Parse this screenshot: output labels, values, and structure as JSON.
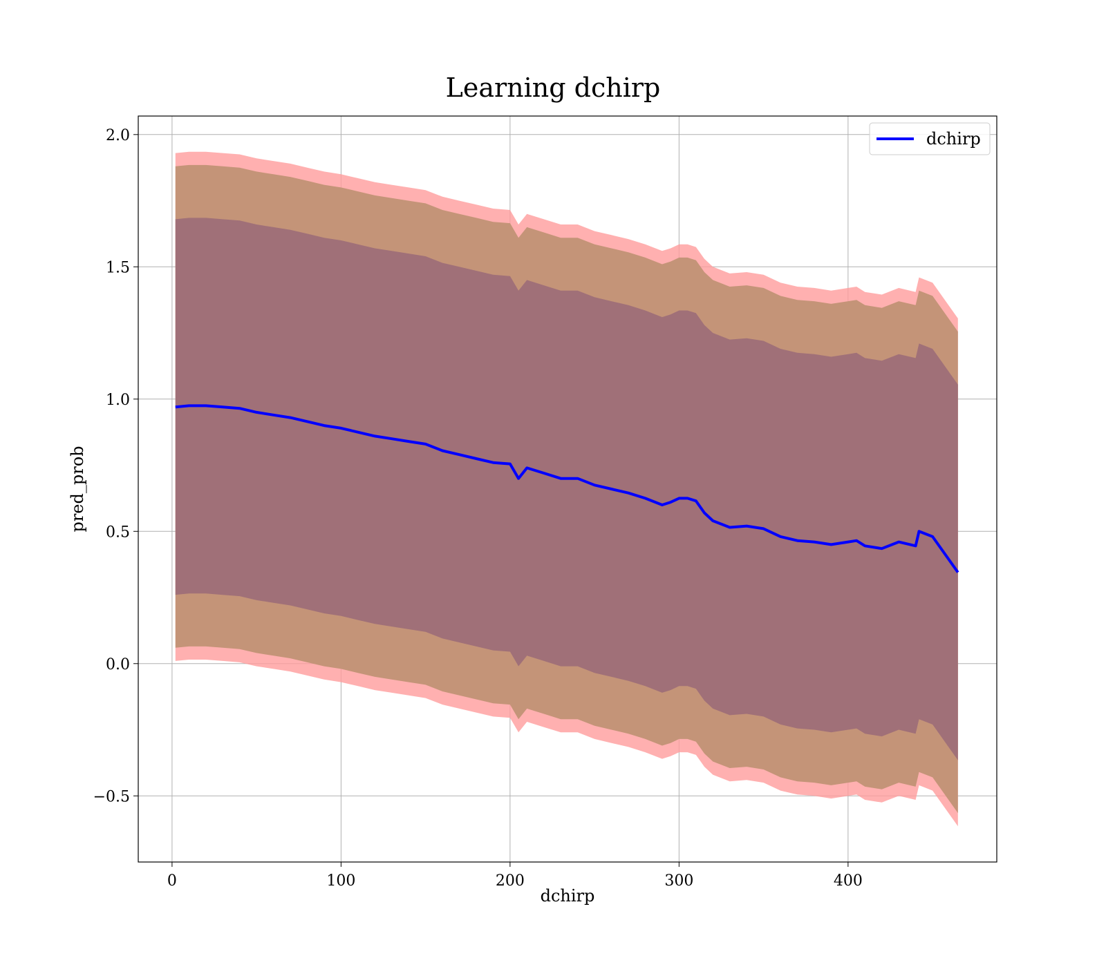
{
  "chart_data": {
    "type": "line",
    "title": "Learning dchirp",
    "xlabel": "dchirp",
    "ylabel": "pred_prob",
    "xlim": [
      -20,
      488
    ],
    "ylim": [
      -0.75,
      2.07
    ],
    "xticks": [
      0,
      100,
      200,
      300,
      400
    ],
    "xtick_labels": [
      "0",
      "100",
      "200",
      "300",
      "400"
    ],
    "yticks": [
      -0.5,
      0.0,
      0.5,
      1.0,
      1.5,
      2.0
    ],
    "ytick_labels": [
      "−0.5",
      "0.0",
      "0.5",
      "1.0",
      "1.5",
      "2.0"
    ],
    "grid": true,
    "legend": {
      "position": "upper-right",
      "entries": [
        "dchirp"
      ]
    },
    "colors": {
      "line": "#0000ff",
      "band_outer": "#ff9c9c",
      "band_middle": "#c49478",
      "band_inner": "#a07078"
    },
    "series": [
      {
        "name": "dchirp",
        "x": [
          2,
          10,
          20,
          30,
          40,
          50,
          60,
          70,
          80,
          90,
          100,
          110,
          120,
          130,
          140,
          150,
          160,
          170,
          180,
          190,
          200,
          205,
          210,
          220,
          230,
          240,
          250,
          260,
          270,
          280,
          290,
          295,
          300,
          305,
          310,
          315,
          320,
          330,
          340,
          350,
          360,
          370,
          380,
          390,
          400,
          405,
          410,
          420,
          430,
          440,
          442,
          450,
          465
        ],
        "y": [
          0.97,
          0.975,
          0.975,
          0.97,
          0.965,
          0.95,
          0.94,
          0.93,
          0.915,
          0.9,
          0.89,
          0.875,
          0.86,
          0.85,
          0.84,
          0.83,
          0.805,
          0.79,
          0.775,
          0.76,
          0.755,
          0.7,
          0.74,
          0.72,
          0.7,
          0.7,
          0.675,
          0.66,
          0.645,
          0.625,
          0.6,
          0.61,
          0.625,
          0.625,
          0.615,
          0.57,
          0.54,
          0.515,
          0.52,
          0.51,
          0.48,
          0.465,
          0.46,
          0.45,
          0.46,
          0.465,
          0.445,
          0.435,
          0.46,
          0.445,
          0.5,
          0.48,
          0.345
        ]
      }
    ],
    "bands": {
      "outer_halfwidth": 0.96,
      "middle_halfwidth": 0.91,
      "inner_halfwidth": 0.71
    }
  }
}
